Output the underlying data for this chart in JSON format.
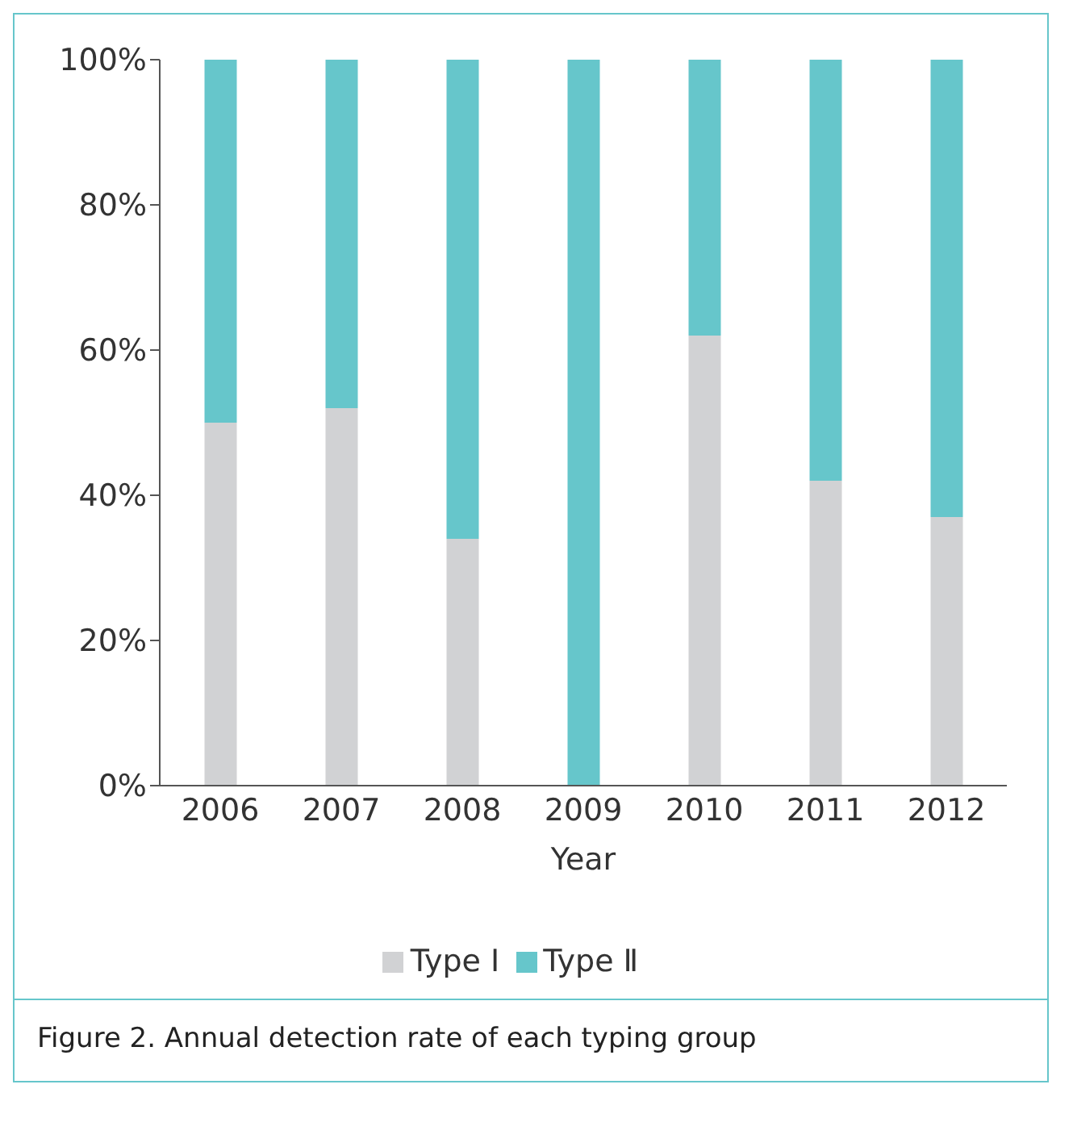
{
  "chart_data": {
    "type": "bar",
    "stacked": true,
    "xlabel": "Year",
    "categories": [
      "2006",
      "2007",
      "2008",
      "2009",
      "2010",
      "2011",
      "2012"
    ],
    "series": [
      {
        "name": "Type Ⅰ",
        "color": "#d1d2d4",
        "values": [
          50,
          52,
          34,
          0,
          62,
          42,
          37
        ]
      },
      {
        "name": "Type Ⅱ",
        "color": "#66c6cb",
        "values": [
          50,
          48,
          66,
          100,
          38,
          58,
          63
        ]
      }
    ],
    "ylim": [
      0,
      100
    ],
    "yticks": [
      {
        "value": 0,
        "label": "0%"
      },
      {
        "value": 20,
        "label": "20%"
      },
      {
        "value": 40,
        "label": "40%"
      },
      {
        "value": 60,
        "label": "60%"
      },
      {
        "value": 80,
        "label": "80%"
      },
      {
        "value": 100,
        "label": "100%"
      }
    ],
    "grid": false,
    "legend": "bottom",
    "annotations": [
      "Figure 2. Annual detection rate of each typing group"
    ]
  }
}
